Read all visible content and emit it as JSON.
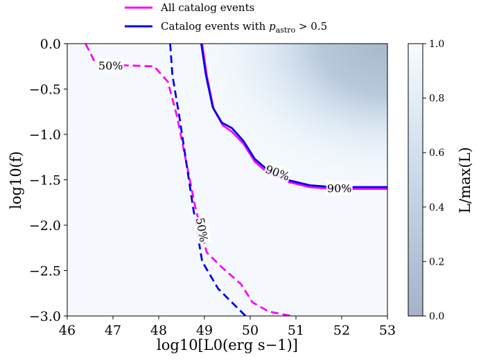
{
  "chart_data": {
    "type": "heatmap",
    "xlabel": "log10[L0(erg s−1)]",
    "ylabel": "log10(f)",
    "xlim": [
      46,
      53
    ],
    "ylim": [
      -3.0,
      0.0
    ],
    "x_ticks": [
      "46",
      "47",
      "48",
      "49",
      "50",
      "51",
      "52",
      "53"
    ],
    "x_tick_values": [
      46,
      47,
      48,
      49,
      50,
      51,
      52,
      53
    ],
    "y_ticks": [
      "0.0",
      "−0.5",
      "−1.0",
      "−1.5",
      "−2.0",
      "−2.5",
      "−3.0"
    ],
    "y_tick_values": [
      0.0,
      -0.5,
      -1.0,
      -1.5,
      -2.0,
      -2.5,
      -3.0
    ],
    "colorbar": {
      "label": "L/max(L)",
      "range": [
        0.0,
        1.0
      ],
      "ticks": [
        "0.0",
        "0.2",
        "0.4",
        "0.6",
        "0.8",
        "1.0"
      ],
      "tick_values": [
        0.0,
        0.2,
        0.4,
        0.6,
        0.8,
        1.0
      ],
      "low_color": "#a4b3c8",
      "high_color": "#f7fbff"
    },
    "legend": {
      "placement": "top-center",
      "entries": [
        {
          "label": "All catalog events",
          "color": "#ff00ff"
        },
        {
          "label": "Catalog events with p_astro > 0.5",
          "label_main": "Catalog events with ",
          "label_var": "p",
          "label_sub": "astro",
          "label_tail": " > 0.5",
          "color": "#0000ee"
        }
      ]
    },
    "series": [
      {
        "name": "All catalog events",
        "level": "90%",
        "style": "solid",
        "color": "#ff00ff",
        "points": [
          [
            48.95,
            0.0
          ],
          [
            49.05,
            -0.35
          ],
          [
            49.2,
            -0.72
          ],
          [
            49.4,
            -0.9
          ],
          [
            49.6,
            -0.97
          ],
          [
            49.85,
            -1.1
          ],
          [
            50.1,
            -1.3
          ],
          [
            50.4,
            -1.43
          ],
          [
            50.8,
            -1.52
          ],
          [
            51.3,
            -1.58
          ],
          [
            51.8,
            -1.6
          ],
          [
            53.0,
            -1.6
          ]
        ]
      },
      {
        "name": "Catalog events with p_astro > 0.5",
        "level": "90%",
        "style": "solid",
        "color": "#0000ee",
        "points": [
          [
            48.93,
            0.0
          ],
          [
            49.03,
            -0.34
          ],
          [
            49.18,
            -0.7
          ],
          [
            49.38,
            -0.87
          ],
          [
            49.6,
            -0.93
          ],
          [
            49.85,
            -1.07
          ],
          [
            50.1,
            -1.27
          ],
          [
            50.4,
            -1.4
          ],
          [
            50.8,
            -1.5
          ],
          [
            51.3,
            -1.56
          ],
          [
            51.8,
            -1.58
          ],
          [
            53.0,
            -1.58
          ]
        ]
      },
      {
        "name": "All catalog events",
        "level": "50%",
        "style": "dashed",
        "color": "#ff00ff",
        "points": [
          [
            46.4,
            0.0
          ],
          [
            46.6,
            -0.2
          ],
          [
            46.9,
            -0.24
          ],
          [
            47.3,
            -0.24
          ],
          [
            47.9,
            -0.25
          ],
          [
            48.2,
            -0.42
          ],
          [
            48.4,
            -0.8
          ],
          [
            48.6,
            -1.3
          ],
          [
            48.8,
            -1.8
          ],
          [
            49.05,
            -2.3
          ],
          [
            49.35,
            -2.45
          ],
          [
            49.8,
            -2.65
          ],
          [
            50.05,
            -2.85
          ],
          [
            50.4,
            -2.95
          ],
          [
            50.9,
            -3.0
          ]
        ]
      },
      {
        "name": "Catalog events with p_astro > 0.5",
        "level": "50%",
        "style": "dashed",
        "color": "#0000ee",
        "points": [
          [
            48.25,
            0.0
          ],
          [
            48.3,
            -0.35
          ],
          [
            48.45,
            -0.8
          ],
          [
            48.6,
            -1.3
          ],
          [
            48.75,
            -1.8
          ],
          [
            48.95,
            -2.4
          ],
          [
            49.3,
            -2.7
          ],
          [
            49.6,
            -2.85
          ],
          [
            49.8,
            -2.95
          ],
          [
            49.9,
            -3.0
          ]
        ]
      }
    ],
    "contour_labels": [
      {
        "text": "50%",
        "x": 46.95,
        "y": -0.24,
        "rotation": 0
      },
      {
        "text": "50%",
        "x": 48.95,
        "y": -2.05,
        "rotation": 80
      },
      {
        "text": "90%",
        "x": 50.6,
        "y": -1.42,
        "rotation": 20
      },
      {
        "text": "90%",
        "x": 51.95,
        "y": -1.59,
        "rotation": 0
      }
    ]
  }
}
